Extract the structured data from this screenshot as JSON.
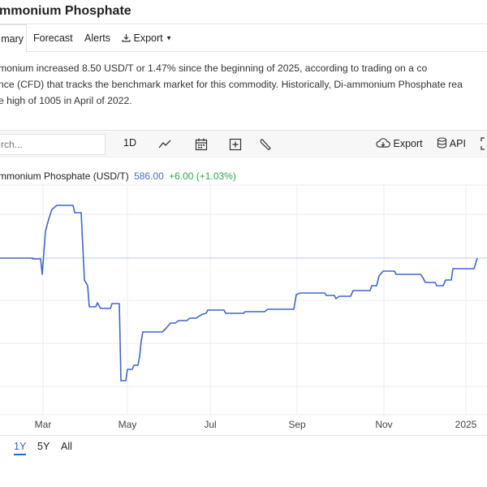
{
  "header": {
    "title": "mmonium Phosphate"
  },
  "tabs": [
    {
      "label": "mary",
      "active": true
    },
    {
      "label": "Forecast"
    },
    {
      "label": "Alerts"
    },
    {
      "label": "Export"
    }
  ],
  "description": {
    "line1": "monium increased 8.50 USD/T or 1.47% since the beginning of 2025, according to trading on a co",
    "line2": "nce (CFD) that tracks the benchmark market for this commodity. Historically, Di-ammonium Phosphate rea",
    "line3": "e high of 1005 in April of 2022."
  },
  "toolbar": {
    "search_placeholder": "rch...",
    "timeframe": "1D",
    "icons": [
      "line-chart-icon",
      "calendar-icon",
      "plus-box-icon",
      "wrench-icon"
    ],
    "export_label": "Export",
    "api_label": "API"
  },
  "legend": {
    "name": "mmonium Phosphate (USD/T)",
    "price": "586.00",
    "change": "+6.00 (+1.03%)"
  },
  "chart_data": {
    "type": "line",
    "series": [
      {
        "name": "Di-ammonium Phosphate (USD/T)",
        "color": "#3f66c9",
        "points": [
          [
            0,
            318
          ],
          [
            40,
            318
          ],
          [
            40,
            319
          ],
          [
            50,
            319
          ],
          [
            52,
            338
          ],
          [
            56,
            285
          ],
          [
            60,
            270
          ],
          [
            64,
            258
          ],
          [
            70,
            253
          ],
          [
            90,
            253
          ],
          [
            92,
            262
          ],
          [
            100,
            262
          ],
          [
            104,
            345
          ],
          [
            108,
            352
          ],
          [
            110,
            378
          ],
          [
            118,
            378
          ],
          [
            120,
            373
          ],
          [
            124,
            380
          ],
          [
            136,
            380
          ],
          [
            138,
            374
          ],
          [
            147,
            374
          ],
          [
            149,
            469
          ],
          [
            155,
            469
          ],
          [
            157,
            455
          ],
          [
            163,
            455
          ],
          [
            165,
            450
          ],
          [
            170,
            450
          ],
          [
            172,
            439
          ],
          [
            174,
            420
          ],
          [
            176,
            409
          ],
          [
            200,
            409
          ],
          [
            205,
            404
          ],
          [
            210,
            398
          ],
          [
            216,
            398
          ],
          [
            220,
            395
          ],
          [
            230,
            395
          ],
          [
            234,
            392
          ],
          [
            242,
            392
          ],
          [
            246,
            389
          ],
          [
            250,
            387
          ],
          [
            254,
            386
          ],
          [
            256,
            382
          ],
          [
            276,
            382
          ],
          [
            278,
            386
          ],
          [
            300,
            386
          ],
          [
            302,
            384
          ],
          [
            326,
            384
          ],
          [
            330,
            381
          ],
          [
            362,
            381
          ],
          [
            365,
            363
          ],
          [
            370,
            361
          ],
          [
            400,
            361
          ],
          [
            402,
            364
          ],
          [
            412,
            364
          ],
          [
            414,
            368
          ],
          [
            418,
            365
          ],
          [
            432,
            365
          ],
          [
            435,
            358
          ],
          [
            456,
            358
          ],
          [
            458,
            352
          ],
          [
            464,
            352
          ],
          [
            467,
            340
          ],
          [
            472,
            334
          ],
          [
            486,
            334
          ],
          [
            488,
            338
          ],
          [
            518,
            338
          ],
          [
            521,
            342
          ],
          [
            524,
            348
          ],
          [
            536,
            348
          ],
          [
            538,
            352
          ],
          [
            546,
            352
          ],
          [
            549,
            345
          ],
          [
            556,
            345
          ],
          [
            558,
            331
          ],
          [
            584,
            331
          ],
          [
            588,
            318
          ]
        ]
      }
    ],
    "x_labels": [
      "Mar",
      "May",
      "Jul",
      "Sep",
      "Nov",
      "2025"
    ],
    "reference_value": "586.00",
    "grid": true
  },
  "ranges": [
    {
      "label": "1Y",
      "active": true
    },
    {
      "label": "5Y"
    },
    {
      "label": "All"
    }
  ]
}
